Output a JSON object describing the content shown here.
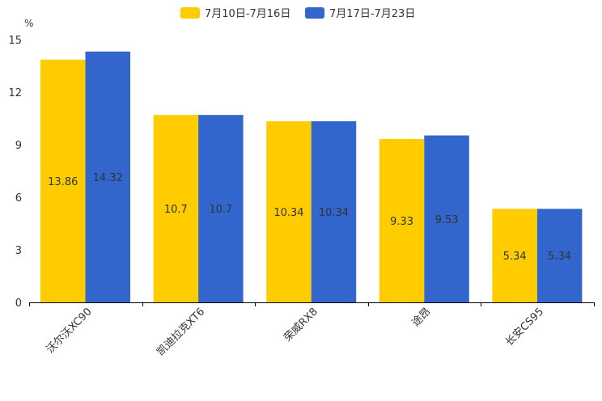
{
  "chart_data": {
    "type": "bar",
    "title": "",
    "xlabel": "",
    "ylabel": "%",
    "ylim": [
      0,
      15
    ],
    "yticks": [
      0,
      3,
      6,
      9,
      12,
      15
    ],
    "grid": false,
    "legend_placement": "top-center",
    "categories": [
      "沃尔沃XC90",
      "凯迪拉克XT6",
      "荣威RX8",
      "途昂",
      "长安CS95"
    ],
    "series": [
      {
        "name": "7月10日-7月16日",
        "color": "#ffcc00",
        "values": [
          13.86,
          10.7,
          10.34,
          9.33,
          5.34
        ]
      },
      {
        "name": "7月17日-7月23日",
        "color": "#3366cc",
        "values": [
          14.32,
          10.7,
          10.34,
          9.53,
          5.34
        ]
      }
    ]
  }
}
